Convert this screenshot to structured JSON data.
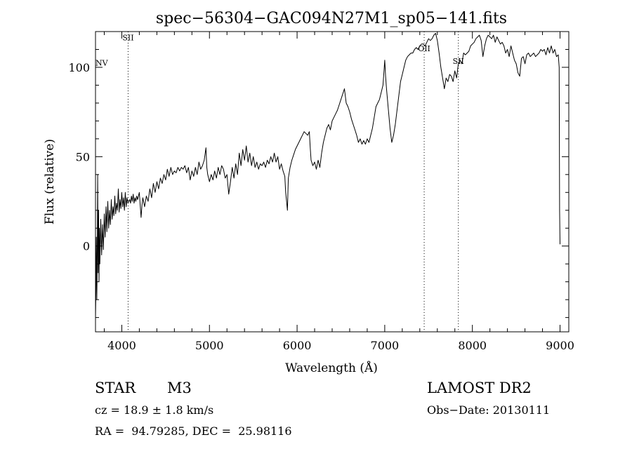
{
  "chart_data": {
    "type": "line",
    "title": "spec−56304−GAC094N27M1_sp05−141.fits",
    "xlabel": "Wavelength (Å)",
    "ylabel": "Flux (relative)",
    "xlim": [
      3700,
      9100
    ],
    "ylim": [
      -48,
      120
    ],
    "x_ticks": [
      4000,
      5000,
      6000,
      7000,
      8000,
      9000
    ],
    "y_ticks": [
      0,
      50,
      100
    ],
    "grid": false,
    "line_color": "#000000",
    "series": [
      {
        "points": [
          [
            3700,
            -40
          ],
          [
            3705,
            -25
          ],
          [
            3710,
            5
          ],
          [
            3715,
            -30
          ],
          [
            3720,
            -5
          ],
          [
            3725,
            40
          ],
          [
            3730,
            -15
          ],
          [
            3735,
            20
          ],
          [
            3740,
            -20
          ],
          [
            3745,
            10
          ],
          [
            3750,
            -10
          ],
          [
            3760,
            15
          ],
          [
            3770,
            -5
          ],
          [
            3780,
            12
          ],
          [
            3790,
            -2
          ],
          [
            3800,
            18
          ],
          [
            3810,
            5
          ],
          [
            3820,
            22
          ],
          [
            3830,
            8
          ],
          [
            3840,
            25
          ],
          [
            3850,
            10
          ],
          [
            3860,
            20
          ],
          [
            3870,
            12
          ],
          [
            3880,
            26
          ],
          [
            3890,
            15
          ],
          [
            3900,
            22
          ],
          [
            3910,
            17
          ],
          [
            3920,
            28
          ],
          [
            3930,
            18
          ],
          [
            3940,
            24
          ],
          [
            3950,
            20
          ],
          [
            3960,
            32
          ],
          [
            3970,
            19
          ],
          [
            3980,
            26
          ],
          [
            3990,
            21
          ],
          [
            4000,
            30
          ],
          [
            4010,
            22
          ],
          [
            4020,
            27
          ],
          [
            4030,
            20
          ],
          [
            4040,
            30
          ],
          [
            4050,
            22
          ],
          [
            4060,
            27
          ],
          [
            4070,
            24
          ],
          [
            4080,
            25
          ],
          [
            4090,
            26
          ],
          [
            4100,
            24
          ],
          [
            4110,
            28
          ],
          [
            4120,
            25
          ],
          [
            4130,
            29
          ],
          [
            4140,
            24
          ],
          [
            4150,
            27
          ],
          [
            4160,
            25
          ],
          [
            4170,
            28
          ],
          [
            4180,
            26
          ],
          [
            4200,
            30
          ],
          [
            4220,
            16
          ],
          [
            4230,
            23
          ],
          [
            4240,
            27
          ],
          [
            4260,
            22
          ],
          [
            4280,
            28
          ],
          [
            4300,
            25
          ],
          [
            4320,
            32
          ],
          [
            4340,
            27
          ],
          [
            4360,
            35
          ],
          [
            4380,
            30
          ],
          [
            4400,
            36
          ],
          [
            4420,
            32
          ],
          [
            4440,
            38
          ],
          [
            4460,
            35
          ],
          [
            4480,
            40
          ],
          [
            4500,
            37
          ],
          [
            4520,
            43
          ],
          [
            4540,
            39
          ],
          [
            4560,
            44
          ],
          [
            4580,
            40
          ],
          [
            4600,
            42
          ],
          [
            4620,
            41
          ],
          [
            4640,
            44
          ],
          [
            4660,
            42
          ],
          [
            4680,
            44
          ],
          [
            4700,
            43
          ],
          [
            4720,
            45
          ],
          [
            4740,
            41
          ],
          [
            4760,
            44
          ],
          [
            4780,
            37
          ],
          [
            4800,
            42
          ],
          [
            4820,
            39
          ],
          [
            4840,
            44
          ],
          [
            4860,
            40
          ],
          [
            4880,
            47
          ],
          [
            4900,
            43
          ],
          [
            4920,
            45
          ],
          [
            4940,
            48
          ],
          [
            4960,
            55
          ],
          [
            4970,
            44
          ],
          [
            4980,
            40
          ],
          [
            5000,
            36
          ],
          [
            5020,
            40
          ],
          [
            5040,
            37
          ],
          [
            5060,
            42
          ],
          [
            5080,
            38
          ],
          [
            5100,
            44
          ],
          [
            5120,
            40
          ],
          [
            5140,
            45
          ],
          [
            5160,
            43
          ],
          [
            5180,
            38
          ],
          [
            5200,
            40
          ],
          [
            5220,
            29
          ],
          [
            5240,
            36
          ],
          [
            5260,
            44
          ],
          [
            5280,
            38
          ],
          [
            5300,
            46
          ],
          [
            5320,
            40
          ],
          [
            5340,
            52
          ],
          [
            5360,
            45
          ],
          [
            5380,
            54
          ],
          [
            5400,
            48
          ],
          [
            5420,
            56
          ],
          [
            5440,
            47
          ],
          [
            5460,
            52
          ],
          [
            5480,
            45
          ],
          [
            5500,
            50
          ],
          [
            5520,
            44
          ],
          [
            5540,
            47
          ],
          [
            5560,
            43
          ],
          [
            5580,
            46
          ],
          [
            5600,
            45
          ],
          [
            5620,
            47
          ],
          [
            5640,
            44
          ],
          [
            5660,
            48
          ],
          [
            5680,
            46
          ],
          [
            5700,
            50
          ],
          [
            5720,
            47
          ],
          [
            5740,
            52
          ],
          [
            5760,
            47
          ],
          [
            5780,
            50
          ],
          [
            5800,
            43
          ],
          [
            5820,
            46
          ],
          [
            5840,
            42
          ],
          [
            5860,
            39
          ],
          [
            5870,
            30
          ],
          [
            5880,
            25
          ],
          [
            5890,
            20
          ],
          [
            5900,
            38
          ],
          [
            5920,
            44
          ],
          [
            5940,
            48
          ],
          [
            5960,
            51
          ],
          [
            5980,
            54
          ],
          [
            6000,
            56
          ],
          [
            6020,
            58
          ],
          [
            6040,
            60
          ],
          [
            6060,
            62
          ],
          [
            6080,
            64
          ],
          [
            6100,
            63
          ],
          [
            6120,
            62
          ],
          [
            6140,
            64
          ],
          [
            6150,
            55
          ],
          [
            6160,
            48
          ],
          [
            6180,
            45
          ],
          [
            6200,
            47
          ],
          [
            6220,
            43
          ],
          [
            6240,
            48
          ],
          [
            6260,
            44
          ],
          [
            6280,
            52
          ],
          [
            6300,
            58
          ],
          [
            6320,
            62
          ],
          [
            6340,
            66
          ],
          [
            6360,
            68
          ],
          [
            6380,
            65
          ],
          [
            6400,
            70
          ],
          [
            6420,
            72
          ],
          [
            6440,
            74
          ],
          [
            6460,
            76
          ],
          [
            6480,
            79
          ],
          [
            6500,
            82
          ],
          [
            6520,
            85
          ],
          [
            6540,
            88
          ],
          [
            6560,
            80
          ],
          [
            6580,
            78
          ],
          [
            6600,
            75
          ],
          [
            6620,
            71
          ],
          [
            6640,
            68
          ],
          [
            6660,
            65
          ],
          [
            6680,
            62
          ],
          [
            6700,
            58
          ],
          [
            6720,
            60
          ],
          [
            6740,
            57
          ],
          [
            6760,
            59
          ],
          [
            6780,
            57
          ],
          [
            6800,
            60
          ],
          [
            6820,
            58
          ],
          [
            6840,
            62
          ],
          [
            6860,
            66
          ],
          [
            6880,
            72
          ],
          [
            6900,
            78
          ],
          [
            6920,
            80
          ],
          [
            6940,
            82
          ],
          [
            6960,
            86
          ],
          [
            6980,
            90
          ],
          [
            7000,
            104
          ],
          [
            7010,
            95
          ],
          [
            7020,
            88
          ],
          [
            7040,
            77
          ],
          [
            7060,
            66
          ],
          [
            7080,
            58
          ],
          [
            7100,
            62
          ],
          [
            7120,
            68
          ],
          [
            7140,
            76
          ],
          [
            7160,
            84
          ],
          [
            7180,
            92
          ],
          [
            7200,
            96
          ],
          [
            7220,
            100
          ],
          [
            7240,
            104
          ],
          [
            7260,
            106
          ],
          [
            7280,
            107
          ],
          [
            7300,
            108
          ],
          [
            7320,
            108
          ],
          [
            7340,
            110
          ],
          [
            7360,
            111
          ],
          [
            7380,
            110
          ],
          [
            7400,
            112
          ],
          [
            7420,
            113
          ],
          [
            7440,
            113
          ],
          [
            7460,
            112
          ],
          [
            7480,
            114
          ],
          [
            7500,
            116
          ],
          [
            7520,
            115
          ],
          [
            7540,
            116
          ],
          [
            7560,
            118
          ],
          [
            7580,
            119
          ],
          [
            7600,
            115
          ],
          [
            7620,
            108
          ],
          [
            7640,
            100
          ],
          [
            7660,
            94
          ],
          [
            7680,
            88
          ],
          [
            7700,
            94
          ],
          [
            7720,
            92
          ],
          [
            7740,
            96
          ],
          [
            7760,
            95
          ],
          [
            7780,
            92
          ],
          [
            7800,
            98
          ],
          [
            7820,
            94
          ],
          [
            7840,
            102
          ],
          [
            7860,
            104
          ],
          [
            7880,
            102
          ],
          [
            7900,
            108
          ],
          [
            7920,
            107
          ],
          [
            7940,
            108
          ],
          [
            7960,
            109
          ],
          [
            7980,
            112
          ],
          [
            8000,
            113
          ],
          [
            8020,
            114
          ],
          [
            8040,
            116
          ],
          [
            8060,
            117
          ],
          [
            8080,
            118
          ],
          [
            8100,
            115
          ],
          [
            8120,
            106
          ],
          [
            8140,
            112
          ],
          [
            8160,
            116
          ],
          [
            8180,
            118
          ],
          [
            8200,
            117
          ],
          [
            8220,
            116
          ],
          [
            8240,
            118
          ],
          [
            8260,
            114
          ],
          [
            8280,
            117
          ],
          [
            8300,
            115
          ],
          [
            8320,
            113
          ],
          [
            8340,
            114
          ],
          [
            8360,
            112
          ],
          [
            8380,
            108
          ],
          [
            8400,
            110
          ],
          [
            8420,
            106
          ],
          [
            8440,
            112
          ],
          [
            8460,
            108
          ],
          [
            8480,
            104
          ],
          [
            8500,
            102
          ],
          [
            8520,
            97
          ],
          [
            8540,
            95
          ],
          [
            8560,
            105
          ],
          [
            8580,
            106
          ],
          [
            8600,
            102
          ],
          [
            8620,
            107
          ],
          [
            8640,
            108
          ],
          [
            8660,
            106
          ],
          [
            8680,
            107
          ],
          [
            8700,
            108
          ],
          [
            8720,
            106
          ],
          [
            8740,
            107
          ],
          [
            8760,
            108
          ],
          [
            8780,
            110
          ],
          [
            8800,
            109
          ],
          [
            8820,
            110
          ],
          [
            8840,
            107
          ],
          [
            8860,
            111
          ],
          [
            8880,
            108
          ],
          [
            8900,
            112
          ],
          [
            8920,
            108
          ],
          [
            8940,
            110
          ],
          [
            8960,
            106
          ],
          [
            8980,
            107
          ],
          [
            8990,
            100
          ],
          [
            8995,
            20
          ],
          [
            9000,
            1
          ]
        ]
      }
    ],
    "line_annotations": [
      {
        "label": "SII",
        "x": 4072,
        "y": 115
      },
      {
        "label": "OII",
        "x": 7450,
        "y": 109
      },
      {
        "label": "SII",
        "x": 7840,
        "y": 102
      }
    ],
    "point_annotations": [
      {
        "label": "NV",
        "x": 3770,
        "y": 101
      }
    ]
  },
  "footer": {
    "object_class": "STAR",
    "subclass": "M3",
    "survey": "LAMOST DR2",
    "cz": "cz = 18.9 ± 1.8 km/s",
    "obs_date": "Obs−Date: 20130111",
    "coords": "RA =  94.79285, DEC =  25.98116"
  }
}
